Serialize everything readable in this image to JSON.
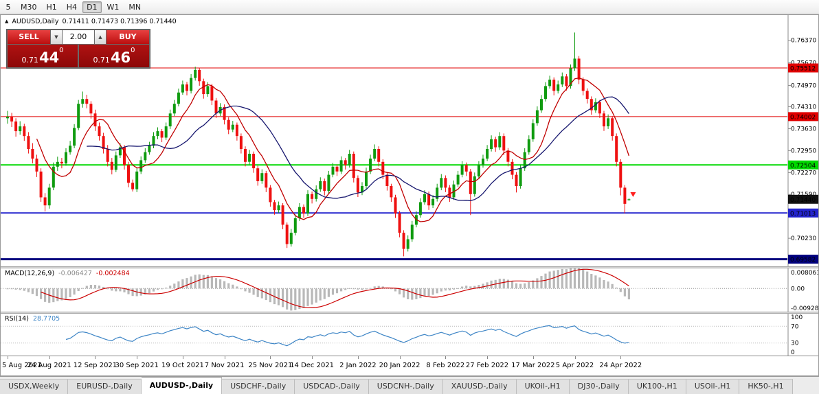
{
  "toolbar": {
    "timeframes": [
      "5",
      "M30",
      "H1",
      "H4",
      "D1",
      "W1",
      "MN"
    ],
    "active": "D1"
  },
  "chart": {
    "symbol": "AUDUSD,Daily",
    "ohlc": "0.71411 0.71473 0.71396 0.71440"
  },
  "one_click": {
    "sell_label": "SELL",
    "buy_label": "BUY",
    "volume": "2.00",
    "sell_price": {
      "prefix": "0.71",
      "big": "44",
      "sup": "0"
    },
    "buy_price": {
      "prefix": "0.71",
      "big": "46",
      "sup": "0"
    },
    "button_color": "#d42b2b",
    "panel_color": "#9e0c0c"
  },
  "chart_data": {
    "type": "candlestick",
    "symbol": "AUDUSD,Daily",
    "up_color": "#0f9b0f",
    "down_color": "#ee1010",
    "y_range": [
      0.6936,
      0.7715
    ],
    "y_ticks": [
      "0.76370",
      "0.75670",
      "0.74970",
      "0.74310",
      "0.73630",
      "0.72950",
      "0.72270",
      "0.71590",
      "0.70230"
    ],
    "last_price": "0.71440",
    "marker": {
      "price": 0.7153,
      "color": "#ff2020"
    },
    "hlines": [
      {
        "price": 0.75512,
        "color": "#e00000",
        "width": 1,
        "badge": "0.75512"
      },
      {
        "price": 0.74002,
        "color": "#e00000",
        "width": 1,
        "badge": "0.74002"
      },
      {
        "price": 0.72504,
        "color": "#00d900",
        "width": 2,
        "badge": "0.72504"
      },
      {
        "price": 0.71013,
        "color": "#2424cd",
        "width": 2,
        "badge": "0.71013"
      },
      {
        "price": 0.69582,
        "color": "#00007e",
        "width": 3,
        "badge": "0.69582"
      }
    ],
    "overlays": [
      {
        "name": "ma-fast",
        "type": "sma",
        "period": 8,
        "color": "#c00000"
      },
      {
        "name": "ma-slow",
        "type": "sma",
        "period": 20,
        "color": "#16166e"
      }
    ],
    "x_labels": [
      "5 Aug 2021",
      "24 Aug 2021",
      "12 Sep 2021",
      "30 Sep 2021",
      "19 Oct 2021",
      "7 Nov 2021",
      "25 Nov 2021",
      "14 Dec 2021",
      "2 Jan 2022",
      "20 Jan 2022",
      "8 Feb 2022",
      "27 Feb 2022",
      "17 Mar 2022",
      "5 Apr 2022",
      "24 Apr 2022"
    ],
    "x_label_indices": [
      0,
      10,
      21,
      31,
      42,
      52,
      63,
      73,
      84,
      94,
      105,
      115,
      126,
      136,
      147
    ],
    "candles": [
      [
        0.7395,
        0.7418,
        0.7378,
        0.74
      ],
      [
        0.74,
        0.7412,
        0.7368,
        0.7385
      ],
      [
        0.7385,
        0.7395,
        0.7338,
        0.7355
      ],
      [
        0.7355,
        0.7386,
        0.7344,
        0.737
      ],
      [
        0.737,
        0.7378,
        0.7325,
        0.734
      ],
      [
        0.734,
        0.7352,
        0.7286,
        0.73
      ],
      [
        0.73,
        0.7318,
        0.7255,
        0.727
      ],
      [
        0.727,
        0.7282,
        0.7213,
        0.723
      ],
      [
        0.723,
        0.724,
        0.7136,
        0.715
      ],
      [
        0.715,
        0.7163,
        0.7106,
        0.7125
      ],
      [
        0.7125,
        0.7192,
        0.7115,
        0.718
      ],
      [
        0.718,
        0.7258,
        0.7172,
        0.7245
      ],
      [
        0.7245,
        0.7276,
        0.7232,
        0.726
      ],
      [
        0.726,
        0.7272,
        0.724,
        0.7255
      ],
      [
        0.7255,
        0.7302,
        0.7248,
        0.729
      ],
      [
        0.729,
        0.7325,
        0.7282,
        0.731
      ],
      [
        0.731,
        0.7377,
        0.7302,
        0.7365
      ],
      [
        0.7365,
        0.7452,
        0.7358,
        0.744
      ],
      [
        0.744,
        0.7478,
        0.7428,
        0.7455
      ],
      [
        0.7455,
        0.7468,
        0.7426,
        0.744
      ],
      [
        0.744,
        0.7448,
        0.7394,
        0.741
      ],
      [
        0.741,
        0.7422,
        0.7356,
        0.737
      ],
      [
        0.737,
        0.7382,
        0.7326,
        0.734
      ],
      [
        0.734,
        0.735,
        0.7286,
        0.73
      ],
      [
        0.73,
        0.7312,
        0.7246,
        0.726
      ],
      [
        0.726,
        0.7272,
        0.7221,
        0.7235
      ],
      [
        0.7235,
        0.7292,
        0.7228,
        0.728
      ],
      [
        0.728,
        0.7317,
        0.7272,
        0.7305
      ],
      [
        0.7305,
        0.7312,
        0.7236,
        0.725
      ],
      [
        0.725,
        0.726,
        0.7181,
        0.7195
      ],
      [
        0.7195,
        0.7205,
        0.7168,
        0.7175
      ],
      [
        0.7175,
        0.7242,
        0.7166,
        0.723
      ],
      [
        0.723,
        0.7277,
        0.7222,
        0.7265
      ],
      [
        0.7265,
        0.7302,
        0.7257,
        0.729
      ],
      [
        0.729,
        0.7322,
        0.7282,
        0.731
      ],
      [
        0.731,
        0.7352,
        0.7302,
        0.734
      ],
      [
        0.734,
        0.7367,
        0.733,
        0.7355
      ],
      [
        0.7355,
        0.7362,
        0.7321,
        0.7335
      ],
      [
        0.7335,
        0.7382,
        0.7328,
        0.737
      ],
      [
        0.737,
        0.7422,
        0.7362,
        0.741
      ],
      [
        0.741,
        0.7452,
        0.7402,
        0.744
      ],
      [
        0.744,
        0.7487,
        0.7432,
        0.7475
      ],
      [
        0.7475,
        0.7512,
        0.7468,
        0.75
      ],
      [
        0.75,
        0.7508,
        0.7466,
        0.748
      ],
      [
        0.748,
        0.7532,
        0.7472,
        0.752
      ],
      [
        0.752,
        0.7555,
        0.7512,
        0.7545
      ],
      [
        0.7545,
        0.7552,
        0.7496,
        0.751
      ],
      [
        0.751,
        0.7518,
        0.7456,
        0.747
      ],
      [
        0.747,
        0.7507,
        0.7462,
        0.7495
      ],
      [
        0.7495,
        0.7502,
        0.7436,
        0.745
      ],
      [
        0.745,
        0.7458,
        0.7396,
        0.741
      ],
      [
        0.741,
        0.7442,
        0.7402,
        0.743
      ],
      [
        0.743,
        0.7438,
        0.7376,
        0.739
      ],
      [
        0.739,
        0.7398,
        0.7346,
        0.736
      ],
      [
        0.736,
        0.7387,
        0.7352,
        0.7375
      ],
      [
        0.7375,
        0.7382,
        0.7326,
        0.734
      ],
      [
        0.734,
        0.7348,
        0.7286,
        0.73
      ],
      [
        0.73,
        0.7308,
        0.7246,
        0.726
      ],
      [
        0.726,
        0.7297,
        0.7252,
        0.7285
      ],
      [
        0.7285,
        0.7292,
        0.7226,
        0.724
      ],
      [
        0.724,
        0.7248,
        0.7186,
        0.72
      ],
      [
        0.72,
        0.7237,
        0.7192,
        0.7225
      ],
      [
        0.7225,
        0.7232,
        0.7166,
        0.718
      ],
      [
        0.718,
        0.7188,
        0.7121,
        0.7135
      ],
      [
        0.7135,
        0.7142,
        0.7096,
        0.711
      ],
      [
        0.711,
        0.7137,
        0.7102,
        0.7125
      ],
      [
        0.7125,
        0.7132,
        0.7051,
        0.7065
      ],
      [
        0.7065,
        0.7072,
        0.6993,
        0.7005
      ],
      [
        0.7005,
        0.7052,
        0.6997,
        0.704
      ],
      [
        0.704,
        0.7097,
        0.7032,
        0.7085
      ],
      [
        0.7085,
        0.7132,
        0.7077,
        0.712
      ],
      [
        0.712,
        0.7128,
        0.7086,
        0.71
      ],
      [
        0.71,
        0.7172,
        0.7092,
        0.716
      ],
      [
        0.716,
        0.7168,
        0.7131,
        0.7145
      ],
      [
        0.7145,
        0.7187,
        0.7137,
        0.7175
      ],
      [
        0.7175,
        0.7212,
        0.7167,
        0.72
      ],
      [
        0.72,
        0.7208,
        0.7156,
        0.717
      ],
      [
        0.717,
        0.7232,
        0.7162,
        0.722
      ],
      [
        0.722,
        0.7257,
        0.7212,
        0.7245
      ],
      [
        0.7245,
        0.7252,
        0.7216,
        0.723
      ],
      [
        0.723,
        0.7277,
        0.7222,
        0.7265
      ],
      [
        0.7265,
        0.7272,
        0.7236,
        0.725
      ],
      [
        0.725,
        0.7297,
        0.7242,
        0.7285
      ],
      [
        0.7285,
        0.7292,
        0.7196,
        0.721
      ],
      [
        0.721,
        0.7218,
        0.7151,
        0.7165
      ],
      [
        0.7165,
        0.7197,
        0.7157,
        0.7185
      ],
      [
        0.7185,
        0.7242,
        0.7177,
        0.723
      ],
      [
        0.723,
        0.7282,
        0.7222,
        0.727
      ],
      [
        0.727,
        0.7314,
        0.7262,
        0.73
      ],
      [
        0.73,
        0.7308,
        0.7246,
        0.726
      ],
      [
        0.726,
        0.7268,
        0.7206,
        0.722
      ],
      [
        0.722,
        0.7228,
        0.7171,
        0.7185
      ],
      [
        0.7185,
        0.7192,
        0.7136,
        0.715
      ],
      [
        0.715,
        0.7158,
        0.7086,
        0.71
      ],
      [
        0.71,
        0.7108,
        0.7026,
        0.704
      ],
      [
        0.704,
        0.7048,
        0.6967,
        0.699
      ],
      [
        0.699,
        0.7032,
        0.6982,
        0.702
      ],
      [
        0.702,
        0.7077,
        0.7012,
        0.7065
      ],
      [
        0.7065,
        0.7107,
        0.7057,
        0.7095
      ],
      [
        0.7095,
        0.7147,
        0.7087,
        0.7135
      ],
      [
        0.7135,
        0.7172,
        0.7127,
        0.716
      ],
      [
        0.716,
        0.7168,
        0.7111,
        0.7125
      ],
      [
        0.7125,
        0.7157,
        0.7117,
        0.7145
      ],
      [
        0.7145,
        0.7192,
        0.7137,
        0.718
      ],
      [
        0.718,
        0.7222,
        0.7172,
        0.721
      ],
      [
        0.721,
        0.7218,
        0.7166,
        0.718
      ],
      [
        0.718,
        0.7188,
        0.7136,
        0.715
      ],
      [
        0.715,
        0.7202,
        0.7142,
        0.719
      ],
      [
        0.719,
        0.7232,
        0.7182,
        0.722
      ],
      [
        0.722,
        0.7262,
        0.7212,
        0.725
      ],
      [
        0.725,
        0.7258,
        0.7216,
        0.723
      ],
      [
        0.723,
        0.7238,
        0.7095,
        0.716
      ],
      [
        0.716,
        0.7227,
        0.7152,
        0.7215
      ],
      [
        0.7215,
        0.7262,
        0.7207,
        0.725
      ],
      [
        0.725,
        0.7282,
        0.7242,
        0.727
      ],
      [
        0.727,
        0.7312,
        0.7262,
        0.73
      ],
      [
        0.73,
        0.7342,
        0.7292,
        0.733
      ],
      [
        0.733,
        0.7338,
        0.7291,
        0.7305
      ],
      [
        0.7305,
        0.7352,
        0.7297,
        0.734
      ],
      [
        0.734,
        0.7348,
        0.7281,
        0.7295
      ],
      [
        0.7295,
        0.7303,
        0.7246,
        0.726
      ],
      [
        0.726,
        0.7268,
        0.7206,
        0.722
      ],
      [
        0.722,
        0.7228,
        0.7165,
        0.7185
      ],
      [
        0.7185,
        0.7252,
        0.7177,
        0.724
      ],
      [
        0.724,
        0.7302,
        0.7232,
        0.729
      ],
      [
        0.729,
        0.7342,
        0.7282,
        0.733
      ],
      [
        0.733,
        0.7392,
        0.7322,
        0.738
      ],
      [
        0.738,
        0.7432,
        0.7372,
        0.742
      ],
      [
        0.742,
        0.7467,
        0.7412,
        0.7455
      ],
      [
        0.7455,
        0.7507,
        0.7447,
        0.7495
      ],
      [
        0.7495,
        0.7527,
        0.7487,
        0.7515
      ],
      [
        0.7515,
        0.7522,
        0.7466,
        0.748
      ],
      [
        0.748,
        0.7512,
        0.7472,
        0.75
      ],
      [
        0.75,
        0.7537,
        0.7492,
        0.7525
      ],
      [
        0.7525,
        0.7532,
        0.7481,
        0.7495
      ],
      [
        0.7495,
        0.7562,
        0.7487,
        0.755
      ],
      [
        0.755,
        0.7661,
        0.7542,
        0.758
      ],
      [
        0.758,
        0.7588,
        0.7501,
        0.7515
      ],
      [
        0.7515,
        0.7522,
        0.7466,
        0.748
      ],
      [
        0.748,
        0.7488,
        0.7441,
        0.7455
      ],
      [
        0.7455,
        0.7463,
        0.7406,
        0.742
      ],
      [
        0.742,
        0.7457,
        0.7412,
        0.7445
      ],
      [
        0.7445,
        0.7452,
        0.7396,
        0.741
      ],
      [
        0.741,
        0.7418,
        0.7356,
        0.737
      ],
      [
        0.737,
        0.7407,
        0.7362,
        0.7395
      ],
      [
        0.7395,
        0.7402,
        0.7326,
        0.734
      ],
      [
        0.734,
        0.7348,
        0.7246,
        0.726
      ],
      [
        0.726,
        0.7268,
        0.7156,
        0.718
      ],
      [
        0.718,
        0.7188,
        0.71,
        0.713
      ],
      [
        0.7141,
        0.7147,
        0.714,
        0.7144
      ]
    ],
    "indicators": [
      {
        "name": "MACD",
        "label": "MACD(12,26,9)",
        "values": [
          "-0.006427",
          "-0.002484"
        ],
        "params": [
          12,
          26,
          9
        ],
        "axis_labels": [
          "0.008061",
          "0.00",
          "-0.00928"
        ],
        "range": [
          -0.00928,
          0.008061
        ],
        "hist_color": "#b8b8b8",
        "signal_color": "#cc0000"
      },
      {
        "name": "RSI",
        "label": "RSI(14)",
        "value": "28.7705",
        "period": 14,
        "axis_labels": [
          "100",
          "70",
          "30",
          "0"
        ],
        "levels": [
          70,
          30
        ],
        "color": "#3d85c6"
      }
    ]
  },
  "tabs": {
    "items": [
      "USDX,Weekly",
      "EURUSD-,Daily",
      "AUDUSD-,Daily",
      "USDCHF-,Daily",
      "USDCAD-,Daily",
      "USDCNH-,Daily",
      "XAUUSD-,Daily",
      "UKOil-,H1",
      "DJ30-,Daily",
      "UK100-,H1",
      "USOil-,H1",
      "HK50-,H1"
    ],
    "active_index": 2
  }
}
